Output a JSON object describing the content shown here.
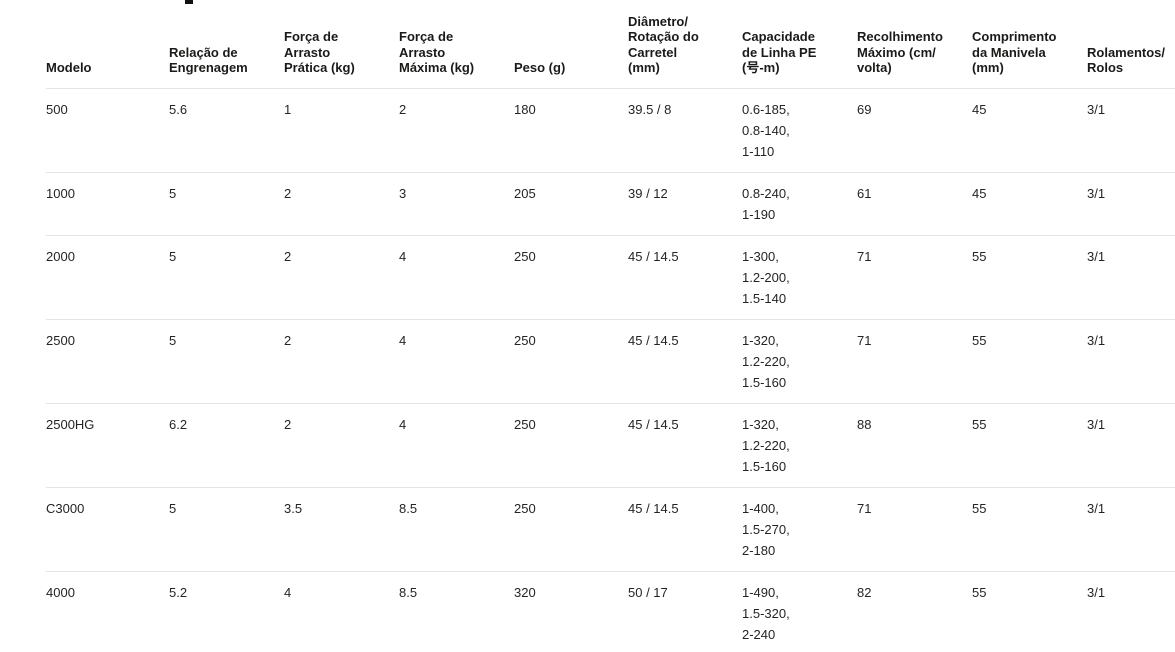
{
  "colors": {
    "background": "#ffffff",
    "header_text": "#1b1a19",
    "body_text": "#252423",
    "row_divider": "#e6e4e2"
  },
  "table": {
    "columns": [
      {
        "key": "model",
        "label": "Modelo"
      },
      {
        "key": "gear_ratio",
        "label": "Relação de\nEngrenagem"
      },
      {
        "key": "practical_drag",
        "label": "Força de\nArrasto\nPrática (kg)"
      },
      {
        "key": "max_drag",
        "label": "Força de\nArrasto\nMáxima (kg)"
      },
      {
        "key": "weight",
        "label": "Peso (g)"
      },
      {
        "key": "spool",
        "label": "Diâmetro/\nRotação do\nCarretel\n(mm)"
      },
      {
        "key": "pe_capacity",
        "label": "Capacidade\nde Linha PE\n(号-m)"
      },
      {
        "key": "max_retrieve",
        "label": "Recolhimento\nMáximo (cm/\nvolta)"
      },
      {
        "key": "handle_length",
        "label": "Comprimento\nda Manivela\n(mm)"
      },
      {
        "key": "bearings",
        "label": "Rolamentos/\nRolos"
      }
    ],
    "rows": [
      {
        "model": "500",
        "gear_ratio": "5.6",
        "practical_drag": "1",
        "max_drag": "2",
        "weight": "180",
        "spool": "39.5 / 8",
        "pe_capacity": "0.6-185,\n0.8-140,\n1-110",
        "max_retrieve": "69",
        "handle_length": "45",
        "bearings": "3/1"
      },
      {
        "model": "1000",
        "gear_ratio": "5",
        "practical_drag": "2",
        "max_drag": "3",
        "weight": "205",
        "spool": "39 / 12",
        "pe_capacity": "0.8-240,\n1-190",
        "max_retrieve": "61",
        "handle_length": "45",
        "bearings": "3/1"
      },
      {
        "model": "2000",
        "gear_ratio": "5",
        "practical_drag": "2",
        "max_drag": "4",
        "weight": "250",
        "spool": "45 / 14.5",
        "pe_capacity": "1-300,\n1.2-200,\n1.5-140",
        "max_retrieve": "71",
        "handle_length": "55",
        "bearings": "3/1"
      },
      {
        "model": "2500",
        "gear_ratio": "5",
        "practical_drag": "2",
        "max_drag": "4",
        "weight": "250",
        "spool": "45 / 14.5",
        "pe_capacity": "1-320,\n1.2-220,\n1.5-160",
        "max_retrieve": "71",
        "handle_length": "55",
        "bearings": "3/1"
      },
      {
        "model": "2500HG",
        "gear_ratio": "6.2",
        "practical_drag": "2",
        "max_drag": "4",
        "weight": "250",
        "spool": "45 / 14.5",
        "pe_capacity": "1-320,\n1.2-220,\n1.5-160",
        "max_retrieve": "88",
        "handle_length": "55",
        "bearings": "3/1"
      },
      {
        "model": "C3000",
        "gear_ratio": "5",
        "practical_drag": "3.5",
        "max_drag": "8.5",
        "weight": "250",
        "spool": "45 / 14.5",
        "pe_capacity": "1-400,\n1.5-270,\n2-180",
        "max_retrieve": "71",
        "handle_length": "55",
        "bearings": "3/1"
      },
      {
        "model": "4000",
        "gear_ratio": "5.2",
        "practical_drag": "4",
        "max_drag": "8.5",
        "weight": "320",
        "spool": "50 / 17",
        "pe_capacity": "1-490,\n1.5-320,\n2-240",
        "max_retrieve": "82",
        "handle_length": "55",
        "bearings": "3/1"
      }
    ]
  }
}
